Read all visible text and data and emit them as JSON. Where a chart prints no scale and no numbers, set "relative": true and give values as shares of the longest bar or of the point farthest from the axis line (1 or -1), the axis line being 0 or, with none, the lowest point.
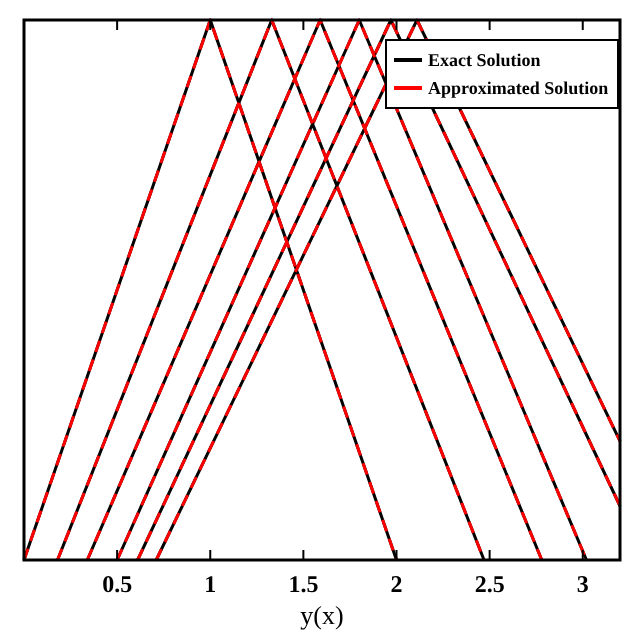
{
  "chart_data": {
    "type": "line",
    "xlabel": "y(x)",
    "relative": true,
    "xlim": [
      0,
      3.2
    ],
    "xticks": [
      0.5,
      1,
      1.5,
      2,
      2.5,
      3
    ],
    "tick_labels": "x",
    "legend": "top right",
    "grid": false,
    "marker": "none",
    "series": [
      {
        "name": "Exact Solution",
        "color": "#000000",
        "line_style": "solid",
        "x": [
          0,
          1,
          2,
          null,
          0.18,
          1.33,
          2.47,
          null,
          0.34,
          1.59,
          2.78,
          null,
          0.5,
          1.8,
          3.02,
          null,
          0.61,
          1.97,
          3.2,
          null,
          0.71,
          2.11,
          3.2
        ],
        "values": [
          0,
          1,
          0,
          null,
          0,
          1,
          0,
          null,
          0,
          1,
          0,
          null,
          0,
          1,
          0,
          null,
          0,
          1,
          0.1,
          null,
          0,
          1,
          0.22
        ]
      },
      {
        "name": "Approximated Solution",
        "color": "#ff0000",
        "line_style": "dashed",
        "x": [
          0,
          1,
          2,
          null,
          0.18,
          1.33,
          2.47,
          null,
          0.34,
          1.59,
          2.78,
          null,
          0.5,
          1.8,
          3.02,
          null,
          0.61,
          1.97,
          3.2,
          null,
          0.71,
          2.11,
          3.2
        ],
        "values": [
          0,
          1,
          0,
          null,
          0,
          1,
          0,
          null,
          0,
          1,
          0,
          null,
          0,
          1,
          0,
          null,
          0,
          1,
          0.1,
          null,
          0,
          1,
          0.22
        ]
      }
    ]
  }
}
